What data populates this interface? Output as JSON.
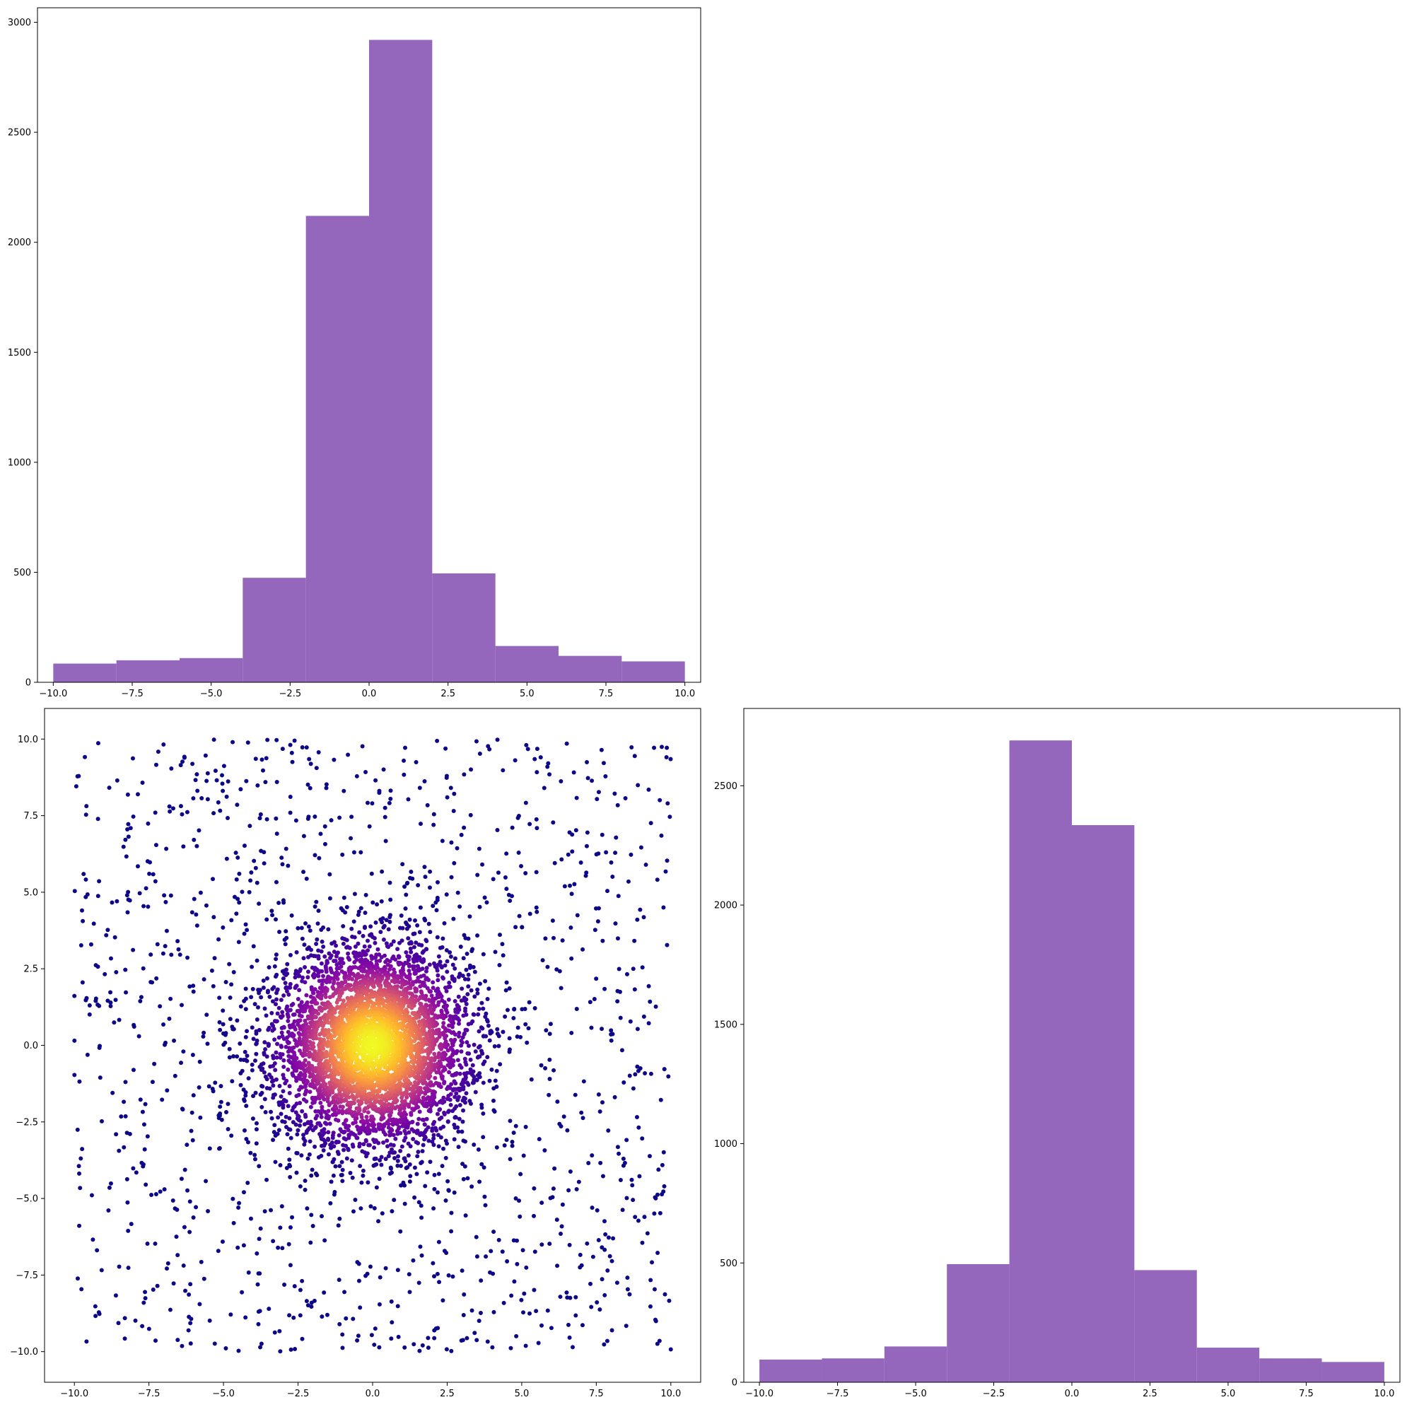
{
  "colors": {
    "bar_fill": "#9467bd",
    "axis": "#000000",
    "background": "#ffffff",
    "scatter_colormap": [
      "#0d0887",
      "#5302a3",
      "#8b0aa5",
      "#b83289",
      "#db5c68",
      "#f48849",
      "#febd2a",
      "#f0f921"
    ]
  },
  "chart_data": [
    {
      "id": "top-left-histogram",
      "type": "bar",
      "bin_edges": [
        -10,
        -8,
        -6,
        -4,
        -2,
        0,
        2,
        4,
        6,
        8,
        10
      ],
      "values": [
        85,
        100,
        110,
        475,
        2120,
        2920,
        495,
        165,
        120,
        95
      ],
      "xlim": [
        -10.5,
        10.5
      ],
      "ylim": [
        0,
        3066
      ],
      "xticks": [
        -10,
        -7.5,
        -5,
        -2.5,
        0,
        2.5,
        5,
        7.5,
        10
      ],
      "xtick_labels": [
        "−10.0",
        "−7.5",
        "−5.0",
        "−2.5",
        "0.0",
        "2.5",
        "5.0",
        "7.5",
        "10.0"
      ],
      "yticks": [
        0,
        500,
        1000,
        1500,
        2000,
        2500,
        3000
      ],
      "ytick_labels": [
        "0",
        "500",
        "1000",
        "1500",
        "2000",
        "2500",
        "3000"
      ],
      "grid": false
    },
    {
      "id": "bottom-left-scatter",
      "type": "scatter",
      "description_of_points": "About 6000 points: a dense 2D Gaussian cluster centered at (0,0) with sd about 1.6 in each axis, plus a sparse uniform background over [-10,10]x[-10,10]; colored by point density from dark purple to yellow at the center",
      "center": [
        0,
        0
      ],
      "cluster_sd": 1.6,
      "cluster_count": 4700,
      "background_count": 1300,
      "xlim": [
        -11,
        11
      ],
      "ylim": [
        -11,
        11
      ],
      "xticks": [
        -10,
        -7.5,
        -5,
        -2.5,
        0,
        2.5,
        5,
        7.5,
        10
      ],
      "xtick_labels": [
        "−10.0",
        "−7.5",
        "−5.0",
        "−2.5",
        "0.0",
        "2.5",
        "5.0",
        "7.5",
        "10.0"
      ],
      "yticks": [
        -10,
        -7.5,
        -5,
        -2.5,
        0,
        2.5,
        5,
        7.5,
        10
      ],
      "ytick_labels": [
        "−10.0",
        "−7.5",
        "−5.0",
        "−2.5",
        "0.0",
        "2.5",
        "5.0",
        "7.5",
        "10.0"
      ],
      "grid": false
    },
    {
      "id": "bottom-right-histogram",
      "type": "bar",
      "bin_edges": [
        -10,
        -8,
        -6,
        -4,
        -2,
        0,
        2,
        4,
        6,
        8,
        10
      ],
      "values": [
        95,
        100,
        150,
        495,
        2690,
        2335,
        470,
        145,
        100,
        85
      ],
      "xlim": [
        -10.5,
        10.5
      ],
      "ylim": [
        0,
        2824
      ],
      "xticks": [
        -10,
        -7.5,
        -5,
        -2.5,
        0,
        2.5,
        5,
        7.5,
        10
      ],
      "xtick_labels": [
        "−10.0",
        "−7.5",
        "−5.0",
        "−2.5",
        "0.0",
        "2.5",
        "5.0",
        "7.5",
        "10.0"
      ],
      "yticks": [
        0,
        500,
        1000,
        1500,
        2000,
        2500
      ],
      "ytick_labels": [
        "0",
        "500",
        "1000",
        "1500",
        "2000",
        "2500"
      ],
      "grid": false
    }
  ]
}
